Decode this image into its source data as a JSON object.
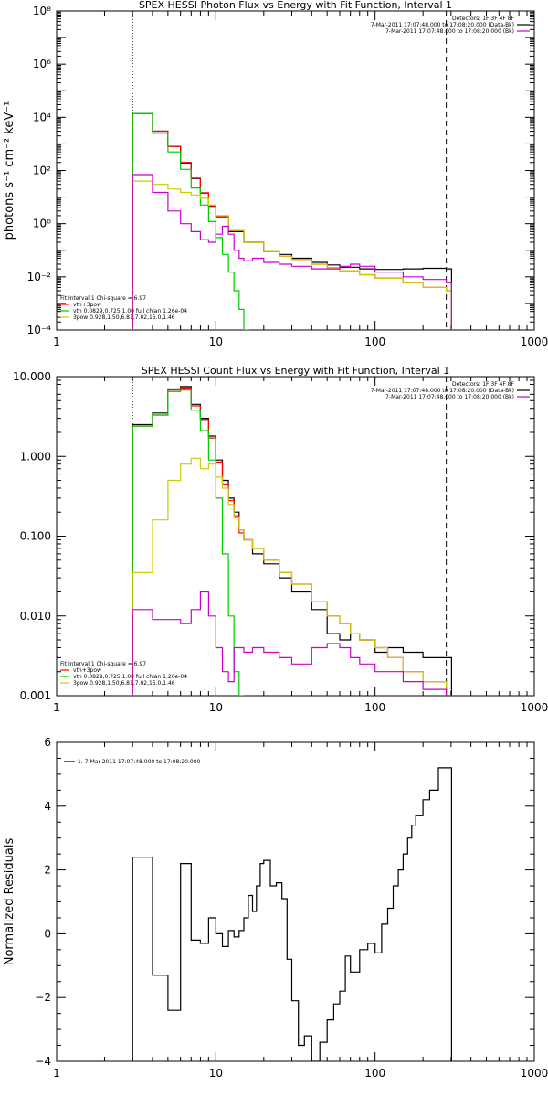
{
  "chart_data": [
    {
      "type": "line",
      "title": "SPEX HESSI Photon Flux vs Energy with Fit Function, Interval 1",
      "xlabel": "",
      "ylabel": "photons s⁻¹ cm⁻² keV⁻¹",
      "xlog": true,
      "ylog": true,
      "xlim": [
        1,
        1000
      ],
      "ylim": [
        0.0001,
        100000000
      ],
      "xticks": [
        1,
        10,
        100,
        1000
      ],
      "xtick_labels": [
        "1",
        "10",
        "100",
        "1000"
      ],
      "yticks": [
        0.0001,
        0.01,
        1,
        100,
        10000,
        1000000,
        100000000
      ],
      "ytick_labels": [
        "10⁻⁴",
        "10⁻²",
        "10⁰",
        "10²",
        "10⁴",
        "10⁶",
        "10⁸"
      ],
      "vlines": [
        {
          "x": 3,
          "style": "dotted"
        },
        {
          "x": 280,
          "style": "dashed"
        }
      ],
      "legend_top_right": [
        {
          "text": "Detectors: 1F 3F 4F 8F",
          "color": "#000000"
        },
        {
          "text": "7-Mar-2011 17:07:48.000 to 17:08:20.000 (Data-Bk)",
          "color": "#000000"
        },
        {
          "text": "7-Mar-2011 17:07:48.000 to 17:08:20.000 (Bk)",
          "color": "#cc00cc"
        }
      ],
      "legend_bottom_left": [
        {
          "text": "Fit Interval 1    Chi-square = 6.97",
          "color": "#000000"
        },
        {
          "text": "vth+3pow",
          "color": "#ff0000"
        },
        {
          "text": "vth 0.0829,0.725,1.00  full chian 1.26e-04",
          "color": "#00cc00"
        },
        {
          "text": "3pow 0.928,1.50,6.81,7.02,15.0,1.46",
          "color": "#cccc00"
        }
      ],
      "series": [
        {
          "color": "#000000",
          "x": [
            3,
            4,
            5,
            6,
            7,
            8,
            9,
            10,
            12,
            15,
            20,
            25,
            30,
            40,
            50,
            60,
            80,
            100,
            150,
            200,
            280
          ],
          "y": [
            14000,
            3000,
            800,
            190,
            50,
            14,
            4.5,
            1.8,
            0.5,
            0.2,
            0.09,
            0.07,
            0.05,
            0.035,
            0.028,
            0.023,
            0.02,
            0.019,
            0.02,
            0.021,
            0.02
          ]
        },
        {
          "color": "#ff0000",
          "x": [
            3,
            4,
            5,
            6,
            7,
            8,
            9,
            10,
            12,
            15,
            20,
            25,
            30,
            40,
            50,
            60,
            80,
            100,
            150,
            200,
            280
          ],
          "y": [
            14000,
            3000,
            800,
            200,
            52,
            14.5,
            4.7,
            1.9,
            0.55,
            0.2,
            0.09,
            0.06,
            0.045,
            0.03,
            0.022,
            0.017,
            0.012,
            0.009,
            0.006,
            0.004,
            0.003
          ]
        },
        {
          "color": "#00cc00",
          "x": [
            3,
            4,
            5,
            6,
            7,
            8,
            9,
            10,
            11,
            12,
            13,
            14,
            15
          ],
          "y": [
            14000,
            2500,
            500,
            110,
            22,
            5,
            1.2,
            0.3,
            0.07,
            0.015,
            0.003,
            0.0006,
            0.0001
          ]
        },
        {
          "color": "#cccc00",
          "x": [
            3,
            4,
            5,
            6,
            7,
            8,
            9,
            10,
            12,
            15,
            20,
            25,
            30,
            40,
            50,
            60,
            80,
            100,
            150,
            200,
            280
          ],
          "y": [
            40,
            30,
            20,
            15,
            12,
            9,
            5,
            2,
            0.55,
            0.2,
            0.09,
            0.06,
            0.045,
            0.03,
            0.022,
            0.017,
            0.012,
            0.009,
            0.006,
            0.004,
            0.003
          ]
        },
        {
          "color": "#cc00cc",
          "x": [
            3,
            4,
            5,
            6,
            7,
            8,
            9,
            10,
            11,
            12,
            13,
            14,
            15,
            17,
            20,
            25,
            30,
            40,
            50,
            60,
            70,
            80,
            100,
            150,
            200,
            280
          ],
          "y": [
            70,
            15,
            3,
            1,
            0.5,
            0.25,
            0.2,
            0.4,
            0.8,
            0.4,
            0.1,
            0.05,
            0.04,
            0.05,
            0.035,
            0.03,
            0.025,
            0.02,
            0.02,
            0.025,
            0.03,
            0.025,
            0.015,
            0.01,
            0.008,
            0.006
          ]
        }
      ]
    },
    {
      "type": "line",
      "title": "SPEX HESSI Count Flux vs Energy with Fit Function, Interval 1",
      "xlabel": "",
      "ylabel": "",
      "xlog": true,
      "ylog": true,
      "xlim": [
        1,
        1000
      ],
      "ylim": [
        0.001,
        10
      ],
      "xticks": [
        1,
        10,
        100,
        1000
      ],
      "xtick_labels": [
        "1",
        "10",
        "100",
        "1000"
      ],
      "yticks": [
        0.001,
        0.01,
        0.1,
        1,
        10
      ],
      "ytick_labels": [
        "0.001",
        "0.010",
        "0.100",
        "1.000",
        "10.000"
      ],
      "vlines": [
        {
          "x": 3,
          "style": "dotted"
        },
        {
          "x": 280,
          "style": "dashed"
        }
      ],
      "legend_top_right": [
        {
          "text": "Detectors: 1F 3F 4F 8F",
          "color": "#000000"
        },
        {
          "text": "7-Mar-2011 17:07:48.000 to 17:08:20.000 (Data-Bk)",
          "color": "#000000"
        },
        {
          "text": "7-Mar-2011 17:07:48.000 to 17:08:20.000 (Bk)",
          "color": "#cc00cc"
        }
      ],
      "legend_bottom_left": [
        {
          "text": "Fit Interval 1    Chi-square = 6.97",
          "color": "#000000"
        },
        {
          "text": "vth+3pow",
          "color": "#ff0000"
        },
        {
          "text": "vth 0.0829,0.725,1.00  full chian 1.26e-04",
          "color": "#00cc00"
        },
        {
          "text": "3pow 0.928,1.50,6.81,7.02,15.0,1.46",
          "color": "#cccc00"
        }
      ],
      "series": [
        {
          "color": "#000000",
          "x": [
            3,
            4,
            5,
            6,
            7,
            8,
            9,
            10,
            11,
            12,
            13,
            14,
            15,
            17,
            20,
            25,
            30,
            40,
            50,
            60,
            70,
            80,
            100,
            120,
            150,
            200,
            280
          ],
          "y": [
            2.5,
            3.5,
            7,
            7.5,
            4.5,
            3,
            1.8,
            0.9,
            0.5,
            0.3,
            0.2,
            0.12,
            0.09,
            0.06,
            0.045,
            0.03,
            0.02,
            0.012,
            0.006,
            0.005,
            0.006,
            0.005,
            0.0035,
            0.004,
            0.0035,
            0.003,
            0.003
          ]
        },
        {
          "color": "#ff0000",
          "x": [
            3,
            4,
            5,
            6,
            7,
            8,
            9,
            10,
            11,
            12,
            13,
            14,
            15,
            17,
            20,
            25,
            30,
            40,
            50,
            60,
            70,
            80,
            100,
            120,
            150,
            200,
            280
          ],
          "y": [
            2.4,
            3.3,
            6.8,
            7.2,
            4.3,
            2.9,
            1.7,
            0.85,
            0.45,
            0.28,
            0.18,
            0.11,
            0.09,
            0.07,
            0.05,
            0.035,
            0.025,
            0.015,
            0.01,
            0.008,
            0.006,
            0.005,
            0.004,
            0.003,
            0.002,
            0.0015,
            0.001
          ]
        },
        {
          "color": "#00cc00",
          "x": [
            3,
            4,
            5,
            6,
            7,
            8,
            9,
            10,
            11,
            12,
            13,
            14
          ],
          "y": [
            2.4,
            3.3,
            6.5,
            6.8,
            3.8,
            2.1,
            0.9,
            0.3,
            0.06,
            0.01,
            0.002,
            0.001
          ]
        },
        {
          "color": "#cccc00",
          "x": [
            3,
            4,
            5,
            6,
            7,
            8,
            9,
            10,
            11,
            12,
            13,
            14,
            15,
            17,
            20,
            25,
            30,
            40,
            50,
            60,
            70,
            80,
            100,
            120,
            150,
            200,
            280
          ],
          "y": [
            0.035,
            0.16,
            0.5,
            0.8,
            0.95,
            0.7,
            0.8,
            0.55,
            0.4,
            0.25,
            0.17,
            0.12,
            0.09,
            0.07,
            0.05,
            0.035,
            0.025,
            0.015,
            0.01,
            0.008,
            0.006,
            0.005,
            0.004,
            0.003,
            0.002,
            0.0015,
            0.001
          ]
        },
        {
          "color": "#cc00cc",
          "x": [
            3,
            4,
            5,
            6,
            7,
            8,
            9,
            10,
            11,
            12,
            13,
            15,
            17,
            20,
            25,
            30,
            40,
            50,
            60,
            70,
            80,
            100,
            120,
            150,
            200,
            280
          ],
          "y": [
            0.012,
            0.009,
            0.009,
            0.008,
            0.012,
            0.02,
            0.01,
            0.004,
            0.002,
            0.0015,
            0.004,
            0.0035,
            0.004,
            0.0035,
            0.003,
            0.0025,
            0.004,
            0.0045,
            0.004,
            0.003,
            0.0025,
            0.002,
            0.002,
            0.0015,
            0.0012,
            0.001
          ]
        }
      ]
    },
    {
      "type": "line",
      "title": "",
      "xlabel": "",
      "ylabel": "Normalized Residuals",
      "xlog": true,
      "ylog": false,
      "xlim": [
        1,
        1000
      ],
      "ylim": [
        -4,
        6
      ],
      "xticks": [
        1,
        10,
        100,
        1000
      ],
      "xtick_labels": [
        "1",
        "10",
        "100",
        "1000"
      ],
      "yticks": [
        -4,
        -2,
        0,
        2,
        4,
        6
      ],
      "ytick_labels": [
        "−4",
        "−2",
        "0",
        "2",
        "4",
        "6"
      ],
      "legend_top_left": [
        {
          "text": "1.  7-Mar-2011 17:07:48.000 to 17:08:20.000",
          "color": "#000000"
        }
      ],
      "series": [
        {
          "color": "#000000",
          "step": true,
          "x": [
            3,
            4,
            5,
            6,
            7,
            8,
            9,
            10,
            11,
            12,
            13,
            14,
            15,
            16,
            17,
            18,
            19,
            20,
            22,
            24,
            26,
            28,
            30,
            33,
            36,
            40,
            45,
            50,
            55,
            60,
            65,
            70,
            80,
            90,
            100,
            110,
            120,
            130,
            140,
            150,
            160,
            170,
            180,
            200,
            220,
            250,
            280
          ],
          "y": [
            2.4,
            -1.3,
            -2.4,
            2.2,
            -0.2,
            -0.3,
            0.5,
            0,
            -0.4,
            0.1,
            -0.1,
            0.1,
            0.5,
            1.2,
            0.7,
            1.5,
            2.2,
            2.3,
            1.5,
            1.6,
            1.1,
            -0.8,
            -2.1,
            -3.5,
            -3.2,
            -4,
            -3.4,
            -2.7,
            -2.2,
            -1.8,
            -0.7,
            -1.2,
            -0.5,
            -0.3,
            -0.6,
            0.3,
            0.8,
            1.5,
            2.0,
            2.5,
            3.0,
            3.4,
            3.7,
            4.2,
            4.5,
            5.2,
            5.2
          ]
        }
      ]
    }
  ]
}
